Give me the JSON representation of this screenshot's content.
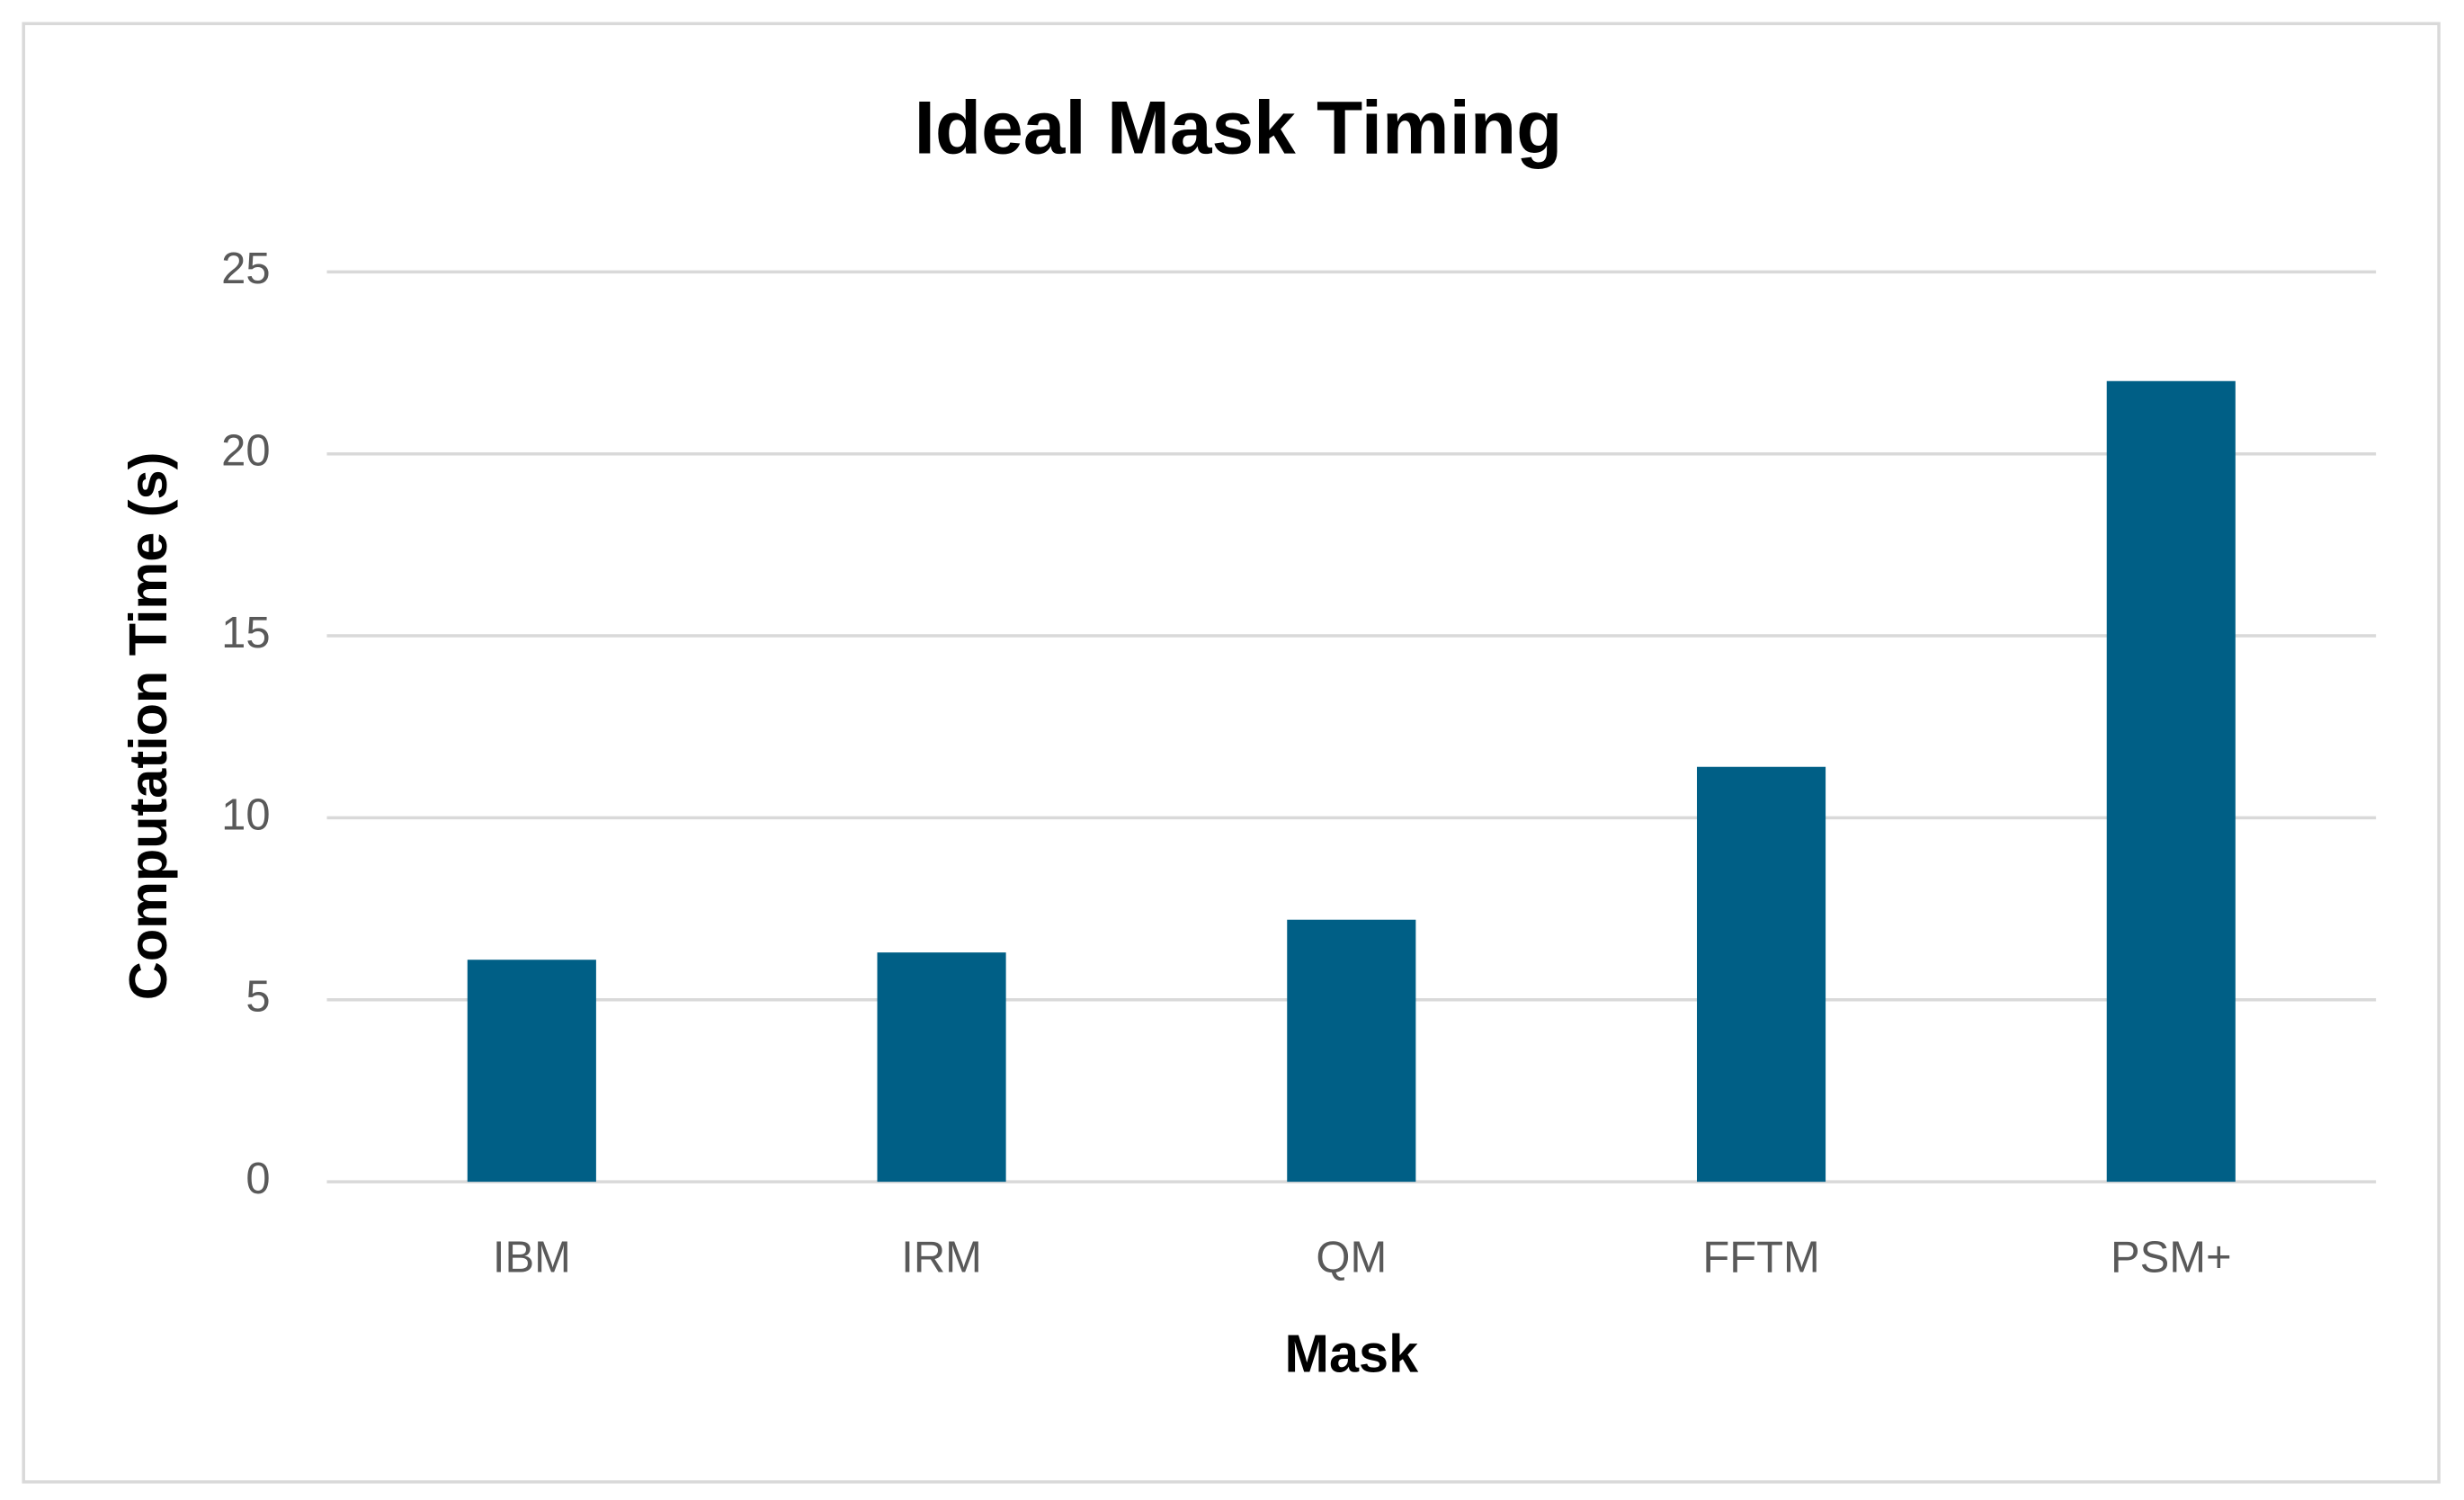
{
  "chart_data": {
    "type": "bar",
    "title": "Ideal Mask Timing",
    "x_label": "Mask",
    "y_label": "Computation Time (s)",
    "categories": [
      "IBM",
      "IRM",
      "QM",
      "FFTM",
      "PSM+"
    ],
    "values": [
      6.1,
      6.3,
      7.2,
      11.4,
      22.0
    ],
    "color": "#005f86",
    "ylim": [
      0,
      25
    ],
    "yticks": [
      0,
      5,
      10,
      15,
      20,
      25
    ],
    "grid": true
  }
}
